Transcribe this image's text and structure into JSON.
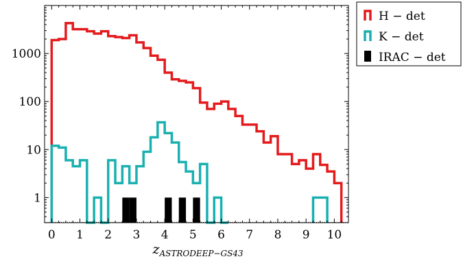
{
  "chart_data": {
    "type": "histogram",
    "xlabel": "z",
    "xlabel_subscript": "ASTRODEEP−GS43",
    "ylabel": "",
    "yscale": "log",
    "xlim": [
      -0.25,
      10.5
    ],
    "ylim": [
      0.3,
      10000
    ],
    "xticks": [
      0,
      1,
      2,
      3,
      4,
      5,
      6,
      7,
      8,
      9,
      10
    ],
    "xtick_labels": [
      "0",
      "1",
      "2",
      "3",
      "4",
      "5",
      "6",
      "7",
      "8",
      "9",
      "10"
    ],
    "yticks": [
      1,
      10,
      100,
      1000
    ],
    "ytick_labels": [
      "1",
      "10",
      "100",
      "1000"
    ],
    "bin_width": 0.25,
    "legend_position": "outside-top-right",
    "series": [
      {
        "name": "H − det",
        "color": "#e41a1c",
        "style": "step",
        "bins": [
          [
            0.0,
            1900
          ],
          [
            0.25,
            2000
          ],
          [
            0.5,
            4300
          ],
          [
            0.75,
            3200
          ],
          [
            1.0,
            3200
          ],
          [
            1.25,
            2900
          ],
          [
            1.5,
            2600
          ],
          [
            1.75,
            2900
          ],
          [
            2.0,
            2300
          ],
          [
            2.25,
            2200
          ],
          [
            2.5,
            2100
          ],
          [
            2.75,
            2400
          ],
          [
            3.0,
            1700
          ],
          [
            3.25,
            1300
          ],
          [
            3.5,
            900
          ],
          [
            3.75,
            740
          ],
          [
            4.0,
            400
          ],
          [
            4.25,
            290
          ],
          [
            4.5,
            270
          ],
          [
            4.75,
            250
          ],
          [
            5.0,
            190
          ],
          [
            5.25,
            95
          ],
          [
            5.5,
            70
          ],
          [
            5.75,
            90
          ],
          [
            6.0,
            100
          ],
          [
            6.25,
            70
          ],
          [
            6.5,
            50
          ],
          [
            6.75,
            33
          ],
          [
            7.0,
            33
          ],
          [
            7.25,
            24
          ],
          [
            7.5,
            14
          ],
          [
            7.75,
            19
          ],
          [
            8.0,
            8
          ],
          [
            8.25,
            8
          ],
          [
            8.5,
            5
          ],
          [
            8.75,
            6
          ],
          [
            9.0,
            4
          ],
          [
            9.25,
            8
          ],
          [
            9.5,
            4.8
          ],
          [
            9.75,
            3.5
          ],
          [
            10.0,
            2
          ]
        ]
      },
      {
        "name": "K − det",
        "color": "#1ab0b0",
        "style": "step",
        "bins": [
          [
            0.0,
            12
          ],
          [
            0.25,
            11
          ],
          [
            0.5,
            6
          ],
          [
            0.75,
            4.5
          ],
          [
            1.0,
            6
          ],
          [
            1.25,
            0
          ],
          [
            1.5,
            1
          ],
          [
            1.75,
            0
          ],
          [
            2.0,
            6
          ],
          [
            2.25,
            2
          ],
          [
            2.5,
            4.5
          ],
          [
            2.75,
            2
          ],
          [
            3.0,
            4.5
          ],
          [
            3.25,
            9
          ],
          [
            3.5,
            18
          ],
          [
            3.75,
            37
          ],
          [
            4.0,
            22
          ],
          [
            4.25,
            14
          ],
          [
            4.5,
            5.5
          ],
          [
            4.75,
            3.5
          ],
          [
            5.0,
            2
          ],
          [
            5.25,
            5
          ],
          [
            5.5,
            0
          ],
          [
            5.75,
            1
          ],
          [
            6.0,
            0
          ],
          [
            9.25,
            1
          ],
          [
            9.5,
            1
          ]
        ]
      },
      {
        "name": "IRAC − det",
        "color": "#000000",
        "style": "filled",
        "bins": [
          [
            2.5,
            1
          ],
          [
            2.75,
            1
          ],
          [
            4.0,
            1
          ],
          [
            4.5,
            1
          ],
          [
            5.0,
            1
          ]
        ]
      }
    ]
  }
}
